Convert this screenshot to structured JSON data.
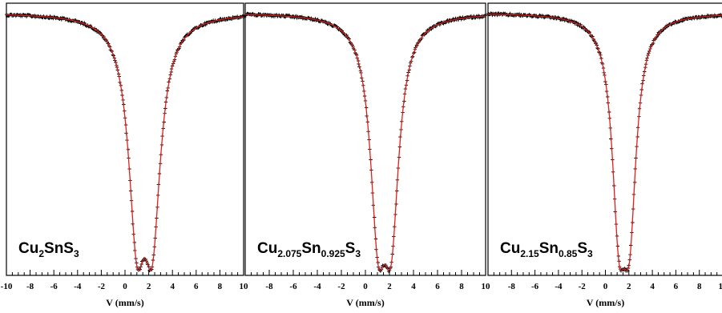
{
  "chart_data": [
    {
      "type": "scatter",
      "title": "",
      "xlabel": "V (mm/s)",
      "ylabel": "",
      "xlim": [
        -10,
        10
      ],
      "x_ticks": [
        -10,
        -8,
        -6,
        -4,
        -2,
        0,
        2,
        4,
        6,
        8,
        10
      ],
      "grid": false,
      "annotation": {
        "base": "Cu",
        "sub1": "2",
        "mid": "SnS",
        "sub2": "3"
      },
      "fit_color": "#e02020",
      "data_color": "#000000",
      "series": [
        {
          "name": "",
          "lines": [
            {
              "center": 1.0,
              "depth": 0.975,
              "gamma": 0.85
            },
            {
              "center": 2.3,
              "depth": 0.975,
              "gamma": 0.85
            }
          ]
        }
      ]
    },
    {
      "type": "scatter",
      "title": "",
      "xlabel": "V (mm/s)",
      "ylabel": "",
      "xlim": [
        -10,
        10
      ],
      "x_ticks": [
        -8,
        -6,
        -4,
        -2,
        0,
        2,
        4,
        6,
        8,
        10
      ],
      "grid": false,
      "annotation": {
        "base": "Cu",
        "sub1": "2.075",
        "mid": "Sn",
        "sub2": "0.925",
        "end": "S",
        "sub3": "3"
      },
      "fit_color": "#e02020",
      "data_color": "#000000",
      "series": [
        {
          "name": "",
          "lines": [
            {
              "center": 1.05,
              "depth": 0.955,
              "gamma": 0.78
            },
            {
              "center": 2.15,
              "depth": 0.955,
              "gamma": 0.78
            }
          ]
        }
      ]
    },
    {
      "type": "scatter",
      "title": "",
      "xlabel": "V (mm/s)",
      "ylabel": "",
      "xlim": [
        -10,
        10
      ],
      "x_ticks": [
        -8,
        -6,
        -4,
        -2,
        0,
        2,
        4,
        6,
        8,
        10
      ],
      "grid": false,
      "annotation": {
        "base": "Cu",
        "sub1": "2.15",
        "mid": "Sn",
        "sub2": "0.85",
        "end": "S",
        "sub3": "3"
      },
      "fit_color": "#e02020",
      "data_color": "#000000",
      "series": [
        {
          "name": "",
          "lines": [
            {
              "center": 1.15,
              "depth": 0.965,
              "gamma": 0.7
            },
            {
              "center": 2.05,
              "depth": 0.965,
              "gamma": 0.7
            }
          ]
        }
      ]
    }
  ]
}
